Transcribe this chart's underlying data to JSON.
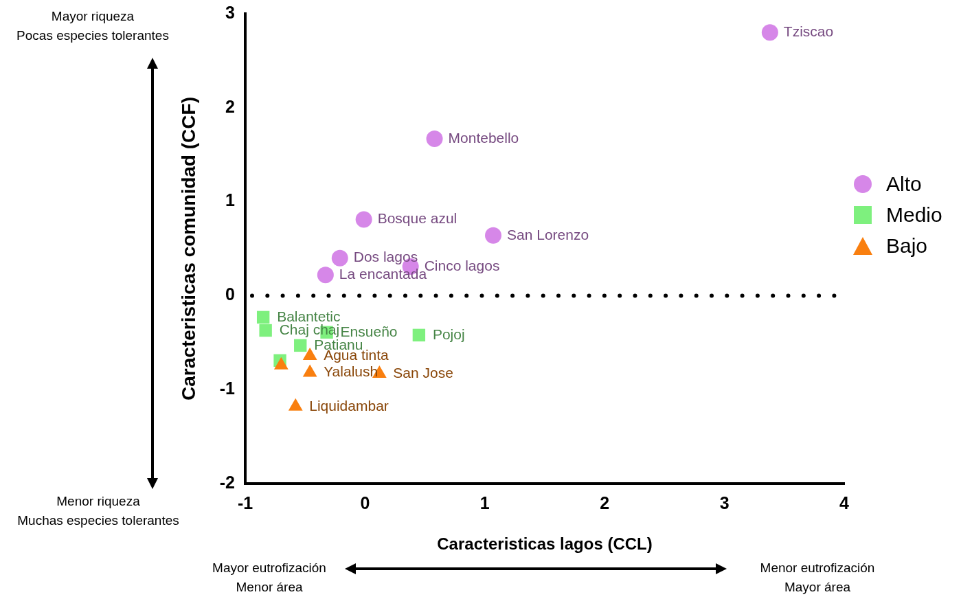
{
  "chart_data": {
    "type": "scatter",
    "xlabel": "Caracteristicas lagos (CCL)",
    "ylabel": "Caracteristicas comunidad (CCF)",
    "xlim": [
      -1,
      4
    ],
    "xticks": [
      -1,
      0,
      1,
      2,
      3,
      4
    ],
    "ylim": [
      -2,
      3
    ],
    "yticks": [
      -2,
      -1,
      0,
      1,
      2,
      3
    ],
    "grid": false,
    "legend": "right",
    "ref_lines": [
      {
        "axis": "y",
        "value": 0,
        "line_style": "dotted",
        "color": "#000000"
      }
    ],
    "annotations": [
      "Mayor riqueza\nPocas especies tolerantes",
      "Menor riqueza\nMuchas especies tolerantes",
      "Mayor eutrofización\nMenor área",
      "Menor eutrofización\nMayor área"
    ],
    "series": [
      {
        "name": "Alto",
        "color": "#d687e8",
        "marker": "circle",
        "x": [
          3.38,
          0.58,
          -0.01,
          1.07,
          -0.21,
          0.38,
          -0.33
        ],
        "values": [
          2.8,
          1.67,
          0.81,
          0.64,
          0.4,
          0.31,
          0.22
        ],
        "value_labels": [
          "Tziscao",
          "Montebello",
          "Bosque azul",
          "San Lorenzo",
          "Dos lagos",
          "Cinco lagos",
          "La encantada"
        ]
      },
      {
        "name": "Medio",
        "color": "#7ef07e",
        "marker": "square",
        "x": [
          -0.85,
          -0.83,
          -0.32,
          -0.54,
          0.45,
          -0.71
        ],
        "values": [
          -0.23,
          -0.37,
          -0.39,
          -0.53,
          -0.42,
          -0.69
        ],
        "value_labels": [
          "Balantetic",
          "Chaj chaj",
          "Ensueño",
          "Patianu",
          "Pojoj",
          null
        ]
      },
      {
        "name": "Bajo",
        "color": "#f97f0f",
        "marker": "triangle",
        "x": [
          -0.7,
          -0.46,
          -0.46,
          0.12,
          -0.58
        ],
        "values": [
          -0.74,
          -0.64,
          -0.82,
          -0.83,
          -1.18
        ],
        "value_labels": [
          null,
          "Agua tinta",
          "Yalalush",
          "San Jose",
          "Liquidambar"
        ]
      }
    ]
  }
}
